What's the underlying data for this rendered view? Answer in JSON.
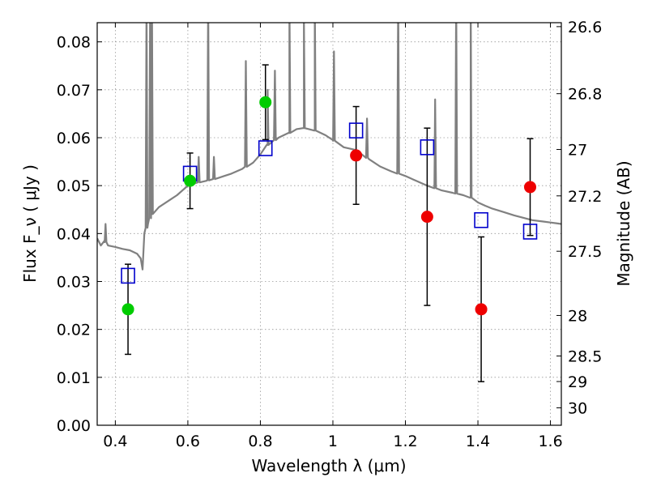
{
  "chart_data": {
    "type": "scatter",
    "xlabel": "Wavelength  λ (μm)",
    "ylabel": "Flux  F_ν  ( μJy )",
    "y2label": "Magnitude (AB)",
    "xlim": [
      0.35,
      1.63
    ],
    "ylim": [
      0.0,
      0.084
    ],
    "x_ticks": [
      0.4,
      0.6,
      0.8,
      1.0,
      1.2,
      1.4,
      1.6
    ],
    "x_tick_labels": [
      "0.4",
      "0.6",
      "0.8",
      "1",
      "1.2",
      "1.4",
      "1.6"
    ],
    "y_ticks": [
      0.0,
      0.01,
      0.02,
      0.03,
      0.04,
      0.05,
      0.06,
      0.07,
      0.08
    ],
    "y_tick_labels": [
      "0.00",
      "0.01",
      "0.02",
      "0.03",
      "0.04",
      "0.05",
      "0.06",
      "0.07",
      "0.08"
    ],
    "mag_ticks": [
      26.6,
      26.8,
      27,
      27.2,
      27.5,
      28,
      28.5,
      29,
      30
    ],
    "mag_tick_labels": [
      "26.6",
      "26.8",
      "27",
      "27.2",
      "27.5",
      "28",
      "28.5",
      "29",
      "30"
    ],
    "grid": true,
    "colors": {
      "sed": "#808080",
      "model_box": "#0000cc",
      "green_point": "#00cc00",
      "red_point": "#ee0000",
      "errorbar": "#000000"
    },
    "observed": [
      {
        "x": 0.435,
        "y": 0.0242,
        "err_lo": 0.0094,
        "err_hi": 0.0094,
        "color": "green"
      },
      {
        "x": 0.606,
        "y": 0.051,
        "err_lo": 0.0058,
        "err_hi": 0.0058,
        "color": "green"
      },
      {
        "x": 0.814,
        "y": 0.0674,
        "err_lo": 0.0078,
        "err_hi": 0.0078,
        "color": "green"
      },
      {
        "x": 1.064,
        "y": 0.0563,
        "err_lo": 0.0102,
        "err_hi": 0.0102,
        "color": "red"
      },
      {
        "x": 1.26,
        "y": 0.0435,
        "err_lo": 0.0185,
        "err_hi": 0.0185,
        "color": "red"
      },
      {
        "x": 1.409,
        "y": 0.0242,
        "err_lo": 0.0151,
        "err_hi": 0.0151,
        "color": "red"
      },
      {
        "x": 1.544,
        "y": 0.0497,
        "err_lo": 0.0101,
        "err_hi": 0.0101,
        "color": "red"
      }
    ],
    "model_photometry": [
      {
        "x": 0.435,
        "y": 0.0312
      },
      {
        "x": 0.606,
        "y": 0.0525
      },
      {
        "x": 0.814,
        "y": 0.0578
      },
      {
        "x": 1.064,
        "y": 0.0615
      },
      {
        "x": 1.26,
        "y": 0.058
      },
      {
        "x": 1.409,
        "y": 0.0428
      },
      {
        "x": 1.544,
        "y": 0.0404
      }
    ],
    "sed_continuum": [
      [
        0.35,
        0.039
      ],
      [
        0.36,
        0.0375
      ],
      [
        0.37,
        0.0385
      ],
      [
        0.38,
        0.0375
      ],
      [
        0.4,
        0.0372
      ],
      [
        0.42,
        0.0368
      ],
      [
        0.44,
        0.0365
      ],
      [
        0.46,
        0.0358
      ],
      [
        0.47,
        0.0348
      ],
      [
        0.475,
        0.0325
      ],
      [
        0.48,
        0.04
      ],
      [
        0.49,
        0.042
      ],
      [
        0.5,
        0.044
      ],
      [
        0.52,
        0.0455
      ],
      [
        0.55,
        0.047
      ],
      [
        0.57,
        0.048
      ],
      [
        0.6,
        0.05
      ],
      [
        0.62,
        0.0505
      ],
      [
        0.65,
        0.051
      ],
      [
        0.68,
        0.0515
      ],
      [
        0.7,
        0.052
      ],
      [
        0.72,
        0.0525
      ],
      [
        0.75,
        0.0535
      ],
      [
        0.78,
        0.0548
      ],
      [
        0.8,
        0.0565
      ],
      [
        0.82,
        0.0585
      ],
      [
        0.85,
        0.06
      ],
      [
        0.88,
        0.061
      ],
      [
        0.9,
        0.0618
      ],
      [
        0.92,
        0.062
      ],
      [
        0.95,
        0.0615
      ],
      [
        0.98,
        0.0605
      ],
      [
        1.0,
        0.0595
      ],
      [
        1.03,
        0.058
      ],
      [
        1.06,
        0.0575
      ],
      [
        1.08,
        0.0565
      ],
      [
        1.1,
        0.0555
      ],
      [
        1.13,
        0.054
      ],
      [
        1.16,
        0.053
      ],
      [
        1.2,
        0.052
      ],
      [
        1.23,
        0.051
      ],
      [
        1.26,
        0.05
      ],
      [
        1.28,
        0.0495
      ],
      [
        1.3,
        0.049
      ],
      [
        1.33,
        0.0485
      ],
      [
        1.36,
        0.048
      ],
      [
        1.38,
        0.0475
      ],
      [
        1.4,
        0.0465
      ],
      [
        1.42,
        0.0458
      ],
      [
        1.44,
        0.0452
      ],
      [
        1.47,
        0.0445
      ],
      [
        1.5,
        0.0438
      ],
      [
        1.53,
        0.0432
      ],
      [
        1.55,
        0.0428
      ],
      [
        1.58,
        0.0425
      ],
      [
        1.6,
        0.0423
      ],
      [
        1.62,
        0.0421
      ],
      [
        1.63,
        0.042
      ]
    ],
    "sed_emission_lines": [
      {
        "x": 0.373,
        "peak": 0.042
      },
      {
        "x": 0.486,
        "peak": 0.09
      },
      {
        "x": 0.496,
        "peak": 0.09
      },
      {
        "x": 0.501,
        "peak": 0.09
      },
      {
        "x": 0.63,
        "peak": 0.056
      },
      {
        "x": 0.656,
        "peak": 0.09
      },
      {
        "x": 0.672,
        "peak": 0.056
      },
      {
        "x": 0.76,
        "peak": 0.076
      },
      {
        "x": 0.82,
        "peak": 0.07
      },
      {
        "x": 0.84,
        "peak": 0.074
      },
      {
        "x": 0.88,
        "peak": 0.09
      },
      {
        "x": 0.92,
        "peak": 0.085
      },
      {
        "x": 0.95,
        "peak": 0.09
      },
      {
        "x": 1.003,
        "peak": 0.078
      },
      {
        "x": 1.094,
        "peak": 0.064
      },
      {
        "x": 1.18,
        "peak": 0.09
      },
      {
        "x": 1.282,
        "peak": 0.068
      },
      {
        "x": 1.34,
        "peak": 0.09
      },
      {
        "x": 1.38,
        "peak": 0.09
      }
    ]
  }
}
